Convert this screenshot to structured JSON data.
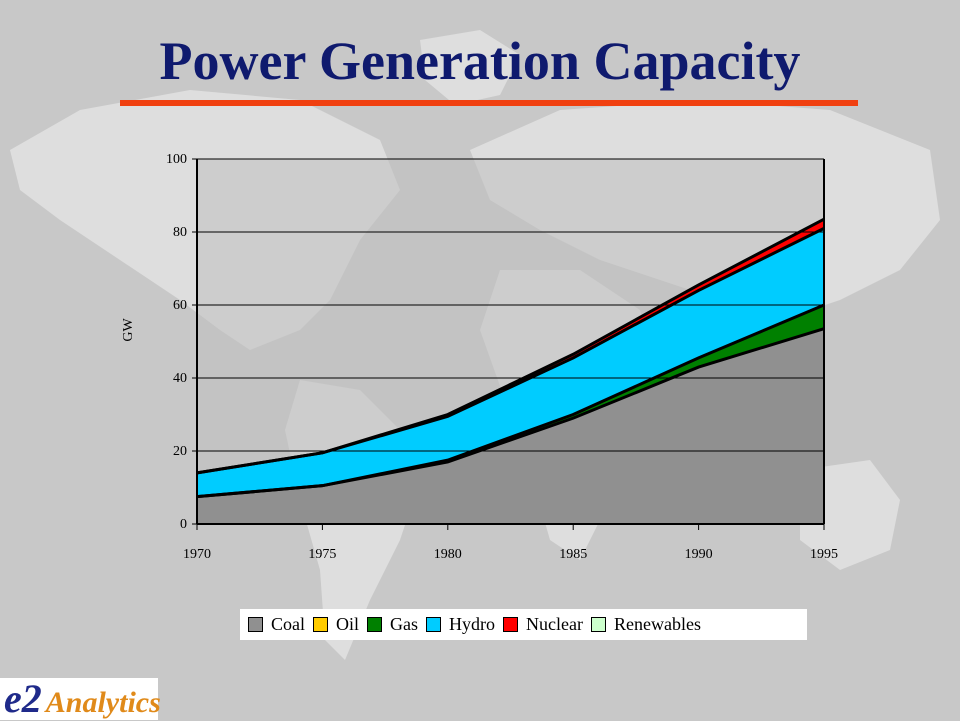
{
  "title": "Power Generation Capacity",
  "colors": {
    "title": "#0f1a6e",
    "rule": "#f04010",
    "background": "#c8c8c8"
  },
  "logo": {
    "mark": "e2",
    "text": "Analytics"
  },
  "chart_data": {
    "type": "area",
    "stacked": true,
    "title": "",
    "xlabel": "",
    "ylabel": "GW",
    "ylim": [
      0,
      100
    ],
    "yticks": [
      0,
      20,
      40,
      60,
      80,
      100
    ],
    "x": [
      1970,
      1975,
      1980,
      1985,
      1990,
      1995
    ],
    "grid": true,
    "legend_position": "bottom",
    "series": [
      {
        "name": "Coal",
        "color": "#909090",
        "values": [
          7.5,
          10.5,
          17,
          29,
          43,
          53.5
        ]
      },
      {
        "name": "Oil",
        "color": "#ffcc00",
        "values": [
          0,
          0,
          0,
          0,
          0,
          0
        ]
      },
      {
        "name": "Gas",
        "color": "#008000",
        "values": [
          0,
          0,
          0.5,
          1,
          2.5,
          6.5
        ]
      },
      {
        "name": "Hydro",
        "color": "#00ccff",
        "values": [
          6.5,
          9,
          12,
          15.5,
          18.5,
          21
        ]
      },
      {
        "name": "Nuclear",
        "color": "#ff0000",
        "values": [
          0,
          0,
          0.5,
          1,
          1.5,
          2.5
        ]
      },
      {
        "name": "Renewables",
        "color": "#ccffcc",
        "values": [
          0,
          0,
          0,
          0,
          0,
          0
        ]
      }
    ]
  }
}
